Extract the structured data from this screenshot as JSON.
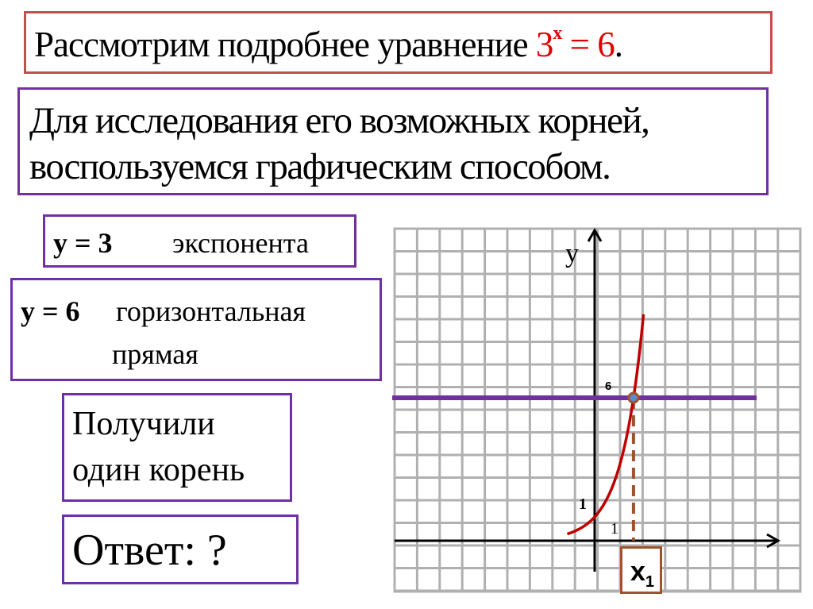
{
  "title_box": {
    "text": "Рассмотрим подробнее уравнение ",
    "eq_base": "3",
    "eq_exp": "x",
    "eq_rest": " = 6",
    "period": "."
  },
  "intro_box": {
    "line1": "Для исследования его возможных корней,",
    "line2": "воспользуемся графическим способом."
  },
  "exp_box": {
    "formula": "y = 3",
    "label": "экспонента"
  },
  "line_box": {
    "formula": "y = 6",
    "label1": "горизонтальная",
    "label2": "прямая"
  },
  "result_box": {
    "line1": "Получили",
    "line2": "один корень"
  },
  "answer_box": {
    "text": "Ответ:  ?"
  },
  "colors": {
    "title_border": "#c0504d",
    "box_border": "#7030a0",
    "equation": "#e00000",
    "curve": "#c00000",
    "hline": "#7030a0",
    "dash": "#a0522d",
    "point": "#5b8bd0"
  },
  "chart_data": {
    "type": "line",
    "grid": true,
    "y_axis_label": "y",
    "tick_labels": {
      "y_six": "6",
      "y_one": "1",
      "x_one": "1"
    },
    "root_label": "x",
    "root_sub": "1",
    "series": [
      {
        "expr": "3^x",
        "x": [
          -1.15,
          -1,
          -0.5,
          0,
          0.5,
          1,
          1.5,
          1.63,
          2,
          2.05
        ],
        "y": [
          0.28,
          0.33,
          0.58,
          1,
          1.73,
          3,
          5.2,
          6,
          9,
          9.5
        ]
      },
      {
        "expr": "6",
        "x": [
          -8.5,
          6.8
        ],
        "y": [
          6,
          6
        ]
      }
    ],
    "intersection": {
      "x": 1.63,
      "y": 6
    },
    "xlim": [
      -8.5,
      8.7
    ],
    "ylim": [
      -2.1,
      13.2
    ]
  }
}
